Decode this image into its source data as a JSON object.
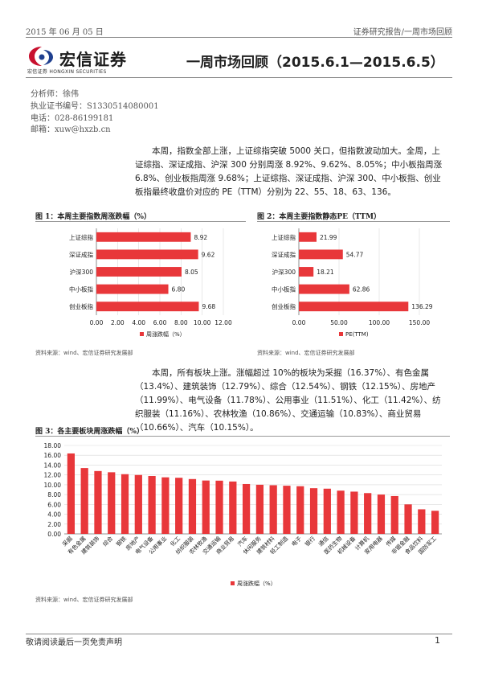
{
  "header": {
    "date": "2015 年 06 月 05 日",
    "category": "证券研究报告/一周市场回顾"
  },
  "logo": {
    "name": "宏信证券",
    "sub": "宏信证券  HONGXIN SECURITIES"
  },
  "title": "一周市场回顾（2015.6.1—2015.6.5）",
  "analyst": {
    "name": "分析师：徐伟",
    "license": "执业证书编号：S1330514080001",
    "phone": "电话：028-86199181",
    "email": "邮箱：xuw@hxzb.cn"
  },
  "paragraph1": "本周，指数全部上涨，上证综指突破 5000 关口，但指数波动加大。全周，上证综指、深证成指、沪深 300 分别周涨 8.92%、9.62%、8.05%；中小板指周涨 6.8%、创业板指周涨 9.68%；上证综指、深证成指、沪深 300、中小板指、创业板指最终收盘价对应的 PE（TTM）分别为 22、55、18、63、136。",
  "paragraph2": "本周，所有板块上涨。涨幅超过 10%的板块为采掘（16.37%）、有色金属（13.4%）、建筑装饰（12.79%）、综合（12.54%）、钢铁（12.15%）、房地产（11.99%）、电气设备（11.78%）、公用事业（11.51%）、化工（11.42%）、纺织服装（11.16%）、农林牧渔（10.86%）、交通运输（10.83%）、商业贸易（10.66%）、汽车（10.15%）。",
  "figures": {
    "fig1_title": "图 1：本周主要指数周涨跌幅（%）",
    "fig2_title": "图 2：本周主要指数静态PE（TTM）",
    "fig3_title": "图 3：各主要板块周涨跌幅（%）",
    "source1": "资料来源：wind、宏信证券研究发展部",
    "source2": "资料来源：wind、宏信证券研究发展部",
    "source3": "资料来源：wind、宏信证券研究发展部"
  },
  "colors": {
    "bar": "#e8373a",
    "grid": "#d9d9d9",
    "text": "#222222"
  },
  "chart_data": [
    {
      "type": "bar",
      "orientation": "horizontal",
      "categories": [
        "上证综指",
        "深证成指",
        "沪深300",
        "中小板指",
        "创业板指"
      ],
      "series": [
        {
          "name": "周涨跌幅（%）",
          "values": [
            8.92,
            9.62,
            8.05,
            6.8,
            9.68
          ]
        }
      ],
      "data_labels": [
        "8.92",
        "9.62",
        "8.05",
        "6.80",
        "9.68"
      ],
      "xlim": [
        0,
        12
      ],
      "ticks": [
        "0.00",
        "2.00",
        "4.00",
        "6.00",
        "8.00",
        "10.00",
        "12.00"
      ],
      "legend": "bottom",
      "grid": true
    },
    {
      "type": "bar",
      "orientation": "horizontal",
      "categories": [
        "上证综指",
        "深证成指",
        "沪深300",
        "中小板指",
        "创业板指"
      ],
      "series": [
        {
          "name": "PE(TTM)",
          "values": [
            21.99,
            54.77,
            18.21,
            62.86,
            136.29
          ]
        }
      ],
      "data_labels": [
        "21.99",
        "54.77",
        "18.21",
        "62.86",
        "136.29"
      ],
      "xlim": [
        0,
        150
      ],
      "ticks": [
        "0.00",
        "50.00",
        "100.00",
        "150.00"
      ],
      "legend": "bottom",
      "grid": true
    },
    {
      "type": "bar",
      "orientation": "vertical",
      "categories": [
        "采掘",
        "有色金属",
        "建筑装饰",
        "综合",
        "钢铁",
        "房地产",
        "电气设备",
        "公用事业",
        "化工",
        "纺织服装",
        "农林牧渔",
        "交通运输",
        "商业贸易",
        "汽车",
        "休闲服务",
        "建筑材料",
        "轻工制造",
        "电子",
        "银行",
        "通信",
        "医药生物",
        "机械设备",
        "计算机",
        "家用电器",
        "传媒",
        "非银金融",
        "食品饮料",
        "国防军工"
      ],
      "series": [
        {
          "name": "周涨跌幅（%）",
          "values": [
            16.37,
            13.4,
            12.79,
            12.54,
            12.15,
            11.99,
            11.78,
            11.51,
            11.42,
            11.16,
            10.86,
            10.83,
            10.66,
            10.15,
            10.0,
            9.9,
            9.8,
            9.7,
            9.3,
            9.2,
            8.8,
            8.6,
            8.3,
            8.0,
            7.7,
            6.0,
            5.0,
            4.7
          ]
        }
      ],
      "ylim": [
        0,
        18
      ],
      "ticks": [
        "0.00",
        "2.00",
        "4.00",
        "6.00",
        "8.00",
        "10.00",
        "12.00",
        "14.00",
        "16.00",
        "18.00"
      ],
      "legend": "bottom",
      "grid": true
    }
  ]
}
